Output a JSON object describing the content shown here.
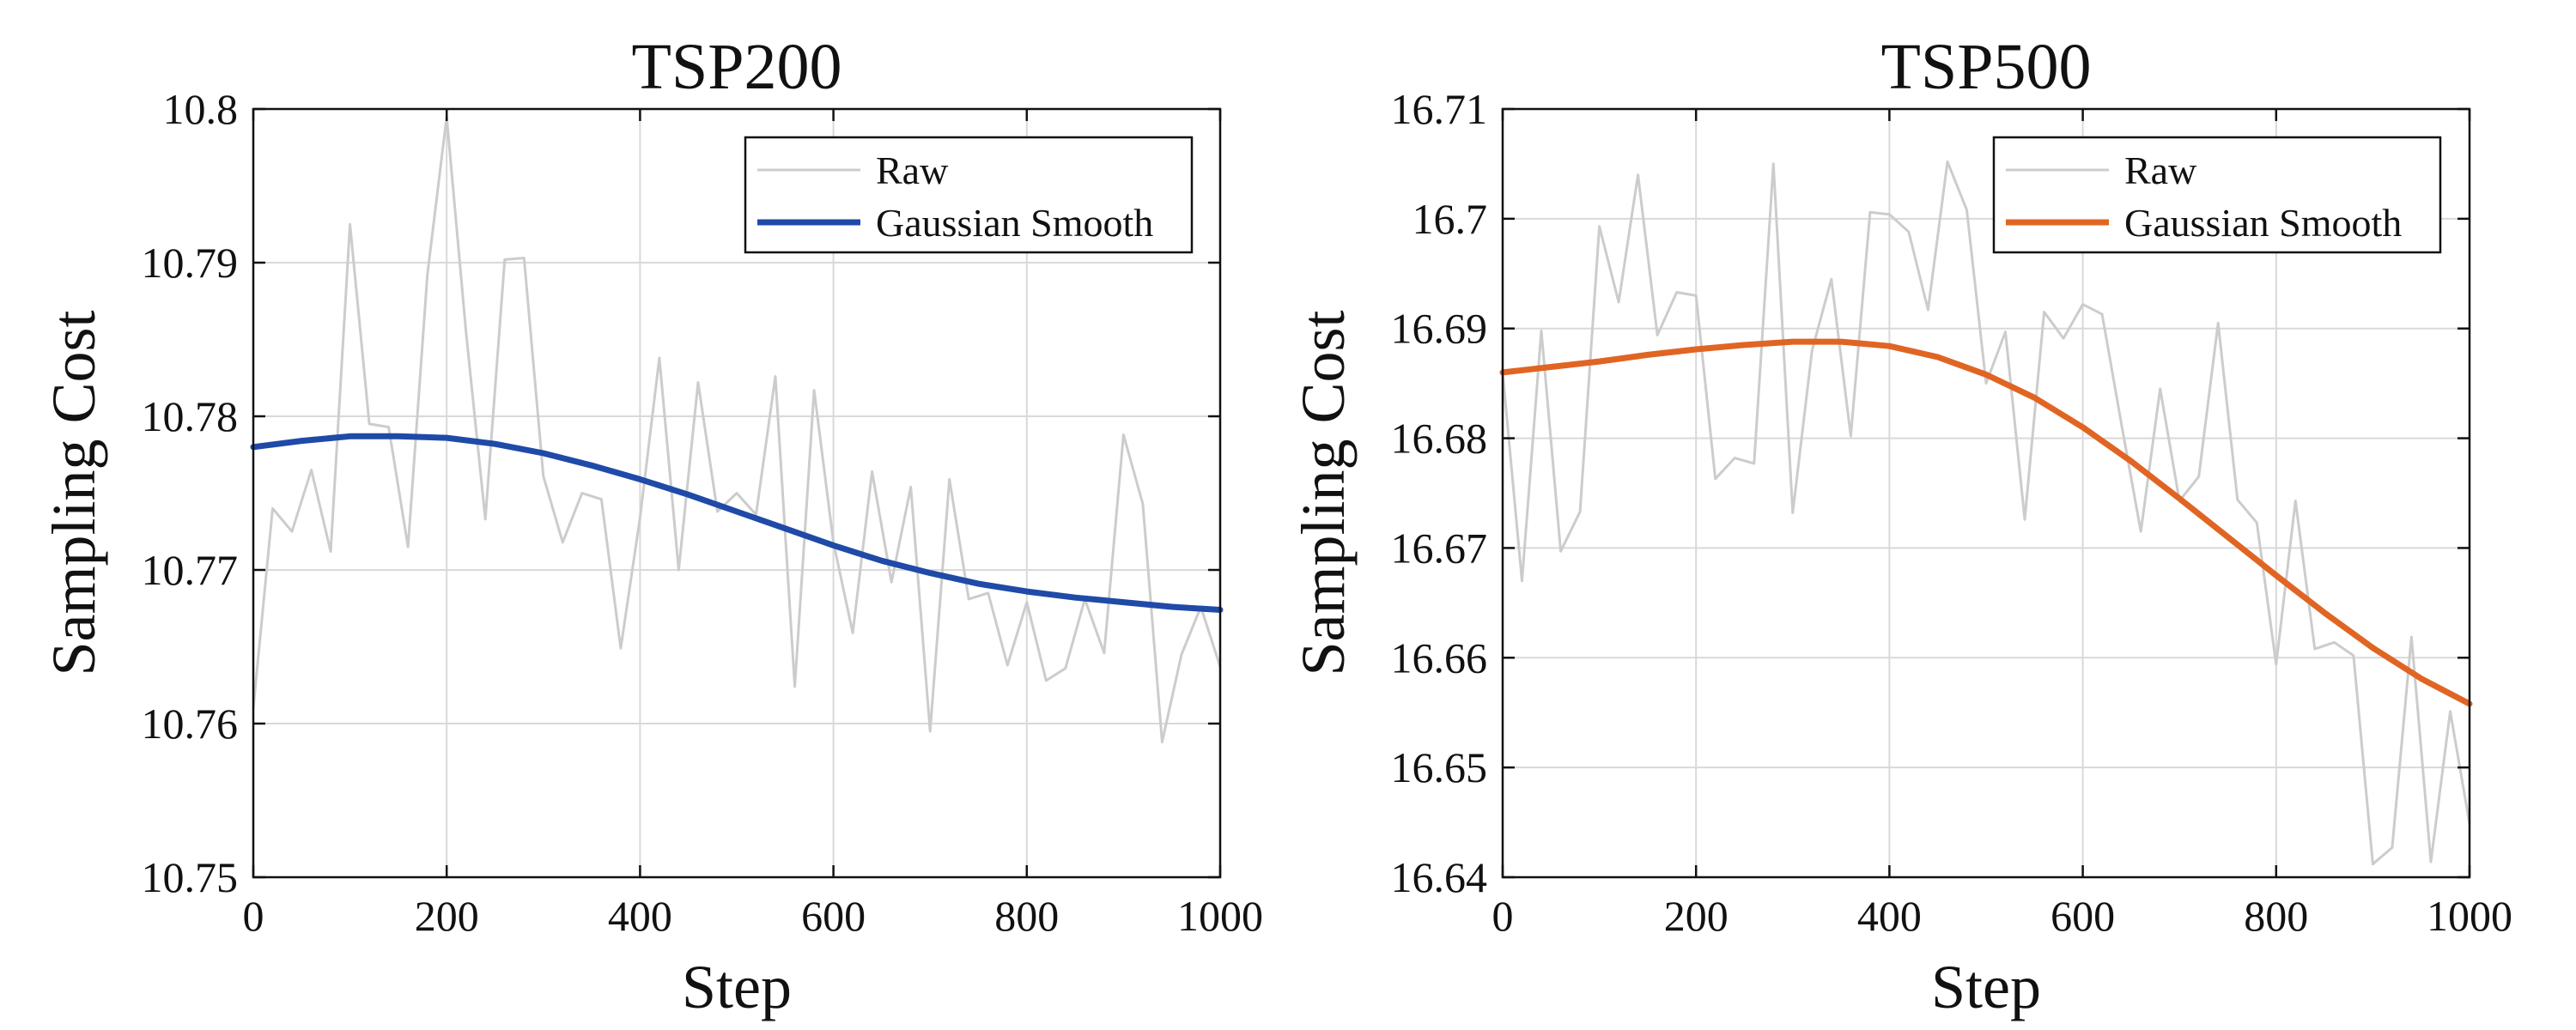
{
  "chart_data": [
    {
      "type": "line",
      "title": "TSP200",
      "xlabel": "Step",
      "ylabel": "Sampling Cost",
      "xlim": [
        0,
        1000
      ],
      "ylim": [
        10.75,
        10.8
      ],
      "xticks": [
        0,
        200,
        400,
        600,
        800,
        1000
      ],
      "xtick_labels": [
        "0",
        "200",
        "400",
        "600",
        "800",
        "1000"
      ],
      "yticks": [
        10.75,
        10.76,
        10.77,
        10.78,
        10.79,
        10.8
      ],
      "ytick_labels": [
        "10.75",
        "10.76",
        "10.77",
        "10.78",
        "10.79",
        "10.8"
      ],
      "grid": true,
      "legend_position": "top-right",
      "series": [
        {
          "name": "Raw",
          "color": "#cccccc",
          "x": [
            0,
            20,
            40,
            60,
            80,
            100,
            120,
            140,
            160,
            180,
            200,
            220,
            240,
            260,
            280,
            300,
            320,
            340,
            360,
            380,
            400,
            420,
            440,
            460,
            480,
            500,
            520,
            540,
            560,
            580,
            600,
            620,
            640,
            660,
            680,
            700,
            720,
            740,
            760,
            780,
            800,
            820,
            840,
            860,
            880,
            900,
            920,
            940,
            960,
            980,
            1000
          ],
          "y": [
            10.761,
            10.774,
            10.7725,
            10.7765,
            10.7712,
            10.7925,
            10.7795,
            10.7793,
            10.7715,
            10.7892,
            10.7995,
            10.7855,
            10.7733,
            10.7902,
            10.7903,
            10.7761,
            10.7718,
            10.775,
            10.7746,
            10.7649,
            10.7734,
            10.7838,
            10.77,
            10.7822,
            10.7738,
            10.775,
            10.7736,
            10.7826,
            10.7624,
            10.7817,
            10.7718,
            10.7659,
            10.7764,
            10.7692,
            10.7754,
            10.7595,
            10.7759,
            10.7681,
            10.7685,
            10.7638,
            10.7679,
            10.7628,
            10.7636,
            10.7681,
            10.7646,
            10.7788,
            10.7743,
            10.7588,
            10.7645,
            10.7676,
            10.7637
          ]
        },
        {
          "name": "Gaussian Smooth",
          "color": "#1f4aa8",
          "x": [
            0,
            50,
            100,
            150,
            200,
            250,
            300,
            350,
            400,
            450,
            500,
            550,
            600,
            650,
            700,
            750,
            800,
            850,
            900,
            950,
            1000
          ],
          "y": [
            10.778,
            10.7784,
            10.7787,
            10.7787,
            10.7786,
            10.7782,
            10.7776,
            10.7768,
            10.7759,
            10.7749,
            10.7738,
            10.7727,
            10.7716,
            10.7706,
            10.7698,
            10.7691,
            10.7686,
            10.7682,
            10.7679,
            10.7676,
            10.7674
          ]
        }
      ]
    },
    {
      "type": "line",
      "title": "TSP500",
      "xlabel": "Step",
      "ylabel": "Sampling Cost",
      "xlim": [
        0,
        1000
      ],
      "ylim": [
        16.64,
        16.71
      ],
      "xticks": [
        0,
        200,
        400,
        600,
        800,
        1000
      ],
      "xtick_labels": [
        "0",
        "200",
        "400",
        "600",
        "800",
        "1000"
      ],
      "yticks": [
        16.64,
        16.65,
        16.66,
        16.67,
        16.68,
        16.69,
        16.7,
        16.71
      ],
      "ytick_labels": [
        "16.64",
        "16.65",
        "16.66",
        "16.67",
        "16.68",
        "16.69",
        "16.7",
        "16.71"
      ],
      "grid": true,
      "legend_position": "top-right",
      "series": [
        {
          "name": "Raw",
          "color": "#cccccc",
          "x": [
            0,
            20,
            40,
            60,
            80,
            100,
            120,
            140,
            160,
            180,
            200,
            220,
            240,
            260,
            280,
            300,
            320,
            340,
            360,
            380,
            400,
            420,
            440,
            460,
            480,
            500,
            520,
            540,
            560,
            580,
            600,
            620,
            640,
            660,
            680,
            700,
            720,
            740,
            760,
            780,
            800,
            820,
            840,
            860,
            880,
            900,
            920,
            940,
            960,
            980,
            1000
          ],
          "y": [
            16.686,
            16.667,
            16.6898,
            16.6697,
            16.6733,
            16.6993,
            16.6924,
            16.704,
            16.6894,
            16.6933,
            16.693,
            16.6763,
            16.6782,
            16.6777,
            16.705,
            16.6732,
            16.688,
            16.6945,
            16.6802,
            16.7006,
            16.7004,
            16.6988,
            16.6917,
            16.7052,
            16.7008,
            16.685,
            16.6897,
            16.6726,
            16.6915,
            16.6891,
            16.6922,
            16.6913,
            16.6813,
            16.6715,
            16.6845,
            16.6743,
            16.6765,
            16.6905,
            16.6744,
            16.6723,
            16.6594,
            16.6743,
            16.6608,
            16.6614,
            16.6602,
            16.6412,
            16.6427,
            16.6619,
            16.6414,
            16.6551,
            16.6449
          ]
        },
        {
          "name": "Gaussian Smooth",
          "color": "#e06523",
          "x": [
            0,
            50,
            100,
            150,
            200,
            250,
            300,
            350,
            400,
            450,
            500,
            550,
            600,
            650,
            700,
            750,
            800,
            850,
            900,
            950,
            1000
          ],
          "y": [
            16.686,
            16.6865,
            16.687,
            16.6876,
            16.6881,
            16.6885,
            16.6888,
            16.6888,
            16.6884,
            16.6874,
            16.6858,
            16.6837,
            16.681,
            16.6779,
            16.6745,
            16.671,
            16.6675,
            16.6641,
            16.6609,
            16.6581,
            16.6558
          ]
        }
      ]
    }
  ]
}
